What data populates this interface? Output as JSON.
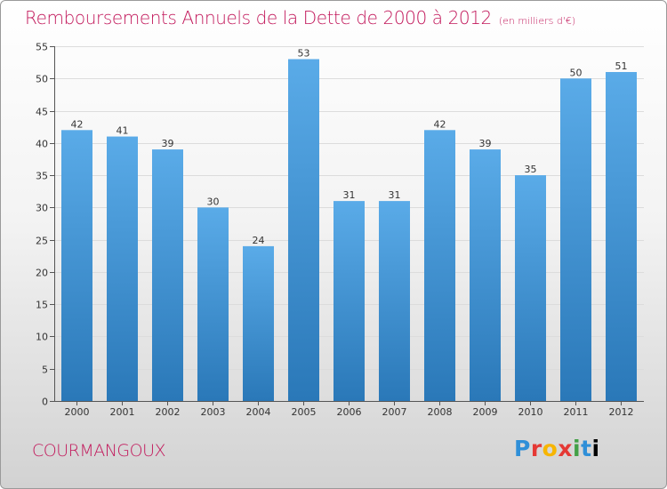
{
  "header": {
    "title": "Remboursements Annuels de la Dette de 2000 à 2012",
    "unit": "(en milliers d'€)"
  },
  "footer": {
    "city": "COURMANGOUX",
    "logo_letters": [
      "P",
      "r",
      "o",
      "x",
      "i",
      "t",
      "i"
    ]
  },
  "colors": {
    "accent": "#c2185b",
    "bar_top": "#5aabe8",
    "bar_bottom": "#2a78b8"
  },
  "chart_data": {
    "type": "bar",
    "categories": [
      "2000",
      "2001",
      "2002",
      "2003",
      "2004",
      "2005",
      "2006",
      "2007",
      "2008",
      "2009",
      "2010",
      "2011",
      "2012"
    ],
    "values": [
      42,
      41,
      39,
      30,
      24,
      53,
      31,
      31,
      42,
      39,
      35,
      50,
      51
    ],
    "ylim": [
      0,
      55
    ],
    "yticks": [
      0,
      5,
      10,
      15,
      20,
      25,
      30,
      35,
      40,
      45,
      50,
      55
    ],
    "grid": true,
    "data_labels": true
  }
}
